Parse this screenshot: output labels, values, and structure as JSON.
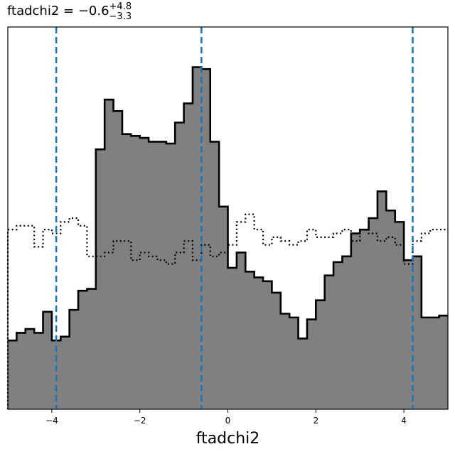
{
  "chart_data": {
    "type": "histogram",
    "title": {
      "lhs": "ftadchi2 = −0.6",
      "sup": "+4.8",
      "sub": "−3.3"
    },
    "xlabel": "ftadchi2",
    "ylabel": "",
    "xlim": [
      -5,
      5
    ],
    "ylim": [
      0,
      1.0
    ],
    "x_ticks": [
      -4,
      -2,
      0,
      2,
      4
    ],
    "x_tick_labels": [
      "−4",
      "−2",
      "0",
      "2",
      "4"
    ],
    "grid": false,
    "bin_edges": [
      -5.0,
      -4.8,
      -4.6,
      -4.4,
      -4.2,
      -4.0,
      -3.8,
      -3.6,
      -3.4,
      -3.2,
      -3.0,
      -2.8,
      -2.6,
      -2.4,
      -2.2,
      -2.0,
      -1.8,
      -1.6,
      -1.4,
      -1.2,
      -1.0,
      -0.8,
      -0.6,
      -0.4,
      -0.2,
      0.0,
      0.2,
      0.4,
      0.6,
      0.8,
      1.0,
      1.2,
      1.4,
      1.6,
      1.8,
      2.0,
      2.2,
      2.4,
      2.6,
      2.8,
      3.0,
      3.2,
      3.4,
      3.6,
      3.8,
      4.0,
      4.2,
      4.4,
      4.6,
      4.8,
      5.0
    ],
    "series": [
      {
        "style": "filled-step",
        "fill_color": "#808080",
        "edge_color": "#000000",
        "values": [
          0.18,
          0.2,
          0.21,
          0.2,
          0.255,
          0.18,
          0.19,
          0.26,
          0.31,
          0.315,
          0.68,
          0.81,
          0.78,
          0.72,
          0.715,
          0.71,
          0.7,
          0.7,
          0.695,
          0.75,
          0.8,
          0.895,
          0.89,
          0.7,
          0.53,
          0.37,
          0.41,
          0.36,
          0.345,
          0.335,
          0.305,
          0.25,
          0.24,
          0.185,
          0.235,
          0.285,
          0.35,
          0.385,
          0.4,
          0.46,
          0.47,
          0.5,
          0.57,
          0.52,
          0.49,
          0.39,
          0.4,
          0.24,
          0.24,
          0.245
        ]
      },
      {
        "style": "dotted-step",
        "edge_color": "#000000",
        "values": [
          0.47,
          0.48,
          0.48,
          0.425,
          0.47,
          0.46,
          0.49,
          0.5,
          0.48,
          0.4,
          0.4,
          0.41,
          0.44,
          0.44,
          0.39,
          0.41,
          0.4,
          0.39,
          0.38,
          0.41,
          0.44,
          0.39,
          0.43,
          0.4,
          0.41,
          0.43,
          0.49,
          0.51,
          0.47,
          0.43,
          0.45,
          0.44,
          0.43,
          0.44,
          0.47,
          0.45,
          0.45,
          0.46,
          0.47,
          0.44,
          0.47,
          0.46,
          0.44,
          0.45,
          0.43,
          0.38,
          0.44,
          0.46,
          0.47,
          0.47
        ]
      }
    ],
    "vlines": {
      "color": "#1f77b4",
      "style": "dashed",
      "x": [
        -3.9,
        -0.6,
        4.2
      ]
    }
  }
}
